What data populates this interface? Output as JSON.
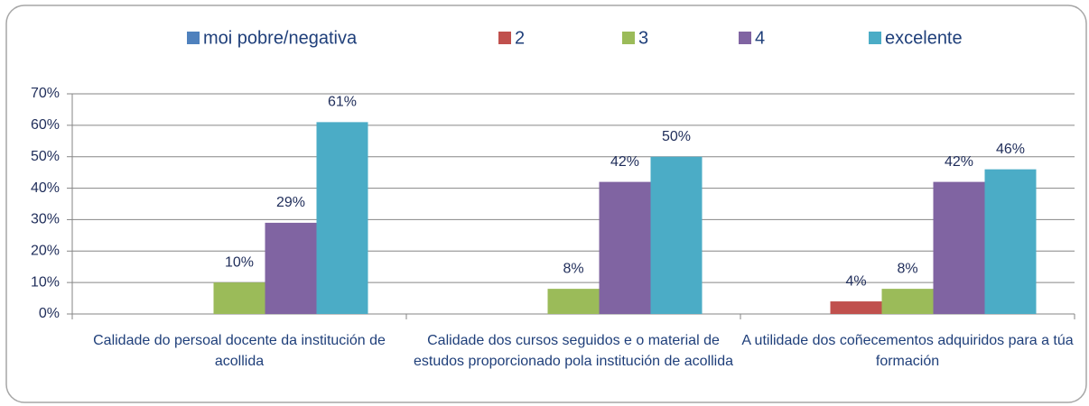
{
  "chart_data": {
    "type": "bar",
    "categories": [
      "Calidade do persoal docente da institución de acollida",
      "Calidade dos cursos seguidos e o material de estudos proporcionado pola institución de acollida",
      "A utilidade dos coñecementos adquiridos para a túa formación"
    ],
    "series": [
      {
        "name": "moi pobre/negativa",
        "color": "#4f81bd",
        "values": [
          0,
          0,
          0
        ],
        "value_labels": [
          null,
          null,
          null
        ]
      },
      {
        "name": "2",
        "color": "#c0504d",
        "values": [
          0,
          0,
          4
        ],
        "value_labels": [
          null,
          null,
          "4%"
        ]
      },
      {
        "name": "3",
        "color": "#9bbb59",
        "values": [
          10,
          8,
          8
        ],
        "value_labels": [
          "10%",
          "8%",
          "8%"
        ]
      },
      {
        "name": "4",
        "color": "#8064a2",
        "values": [
          29,
          42,
          42
        ],
        "value_labels": [
          "29%",
          "42%",
          "42%"
        ]
      },
      {
        "name": "excelente",
        "color": "#4bacc6",
        "values": [
          61,
          50,
          46
        ],
        "value_labels": [
          "61%",
          "50%",
          "46%"
        ]
      }
    ],
    "ylim": [
      0,
      70
    ],
    "yticks": [
      {
        "value": 0,
        "label": "0%"
      },
      {
        "value": 10,
        "label": "10%"
      },
      {
        "value": 20,
        "label": "20%"
      },
      {
        "value": 30,
        "label": "30%"
      },
      {
        "value": 40,
        "label": "40%"
      },
      {
        "value": 50,
        "label": "50%"
      },
      {
        "value": 60,
        "label": "60%"
      },
      {
        "value": 70,
        "label": "70%"
      }
    ],
    "grid": true,
    "legend": "top"
  }
}
